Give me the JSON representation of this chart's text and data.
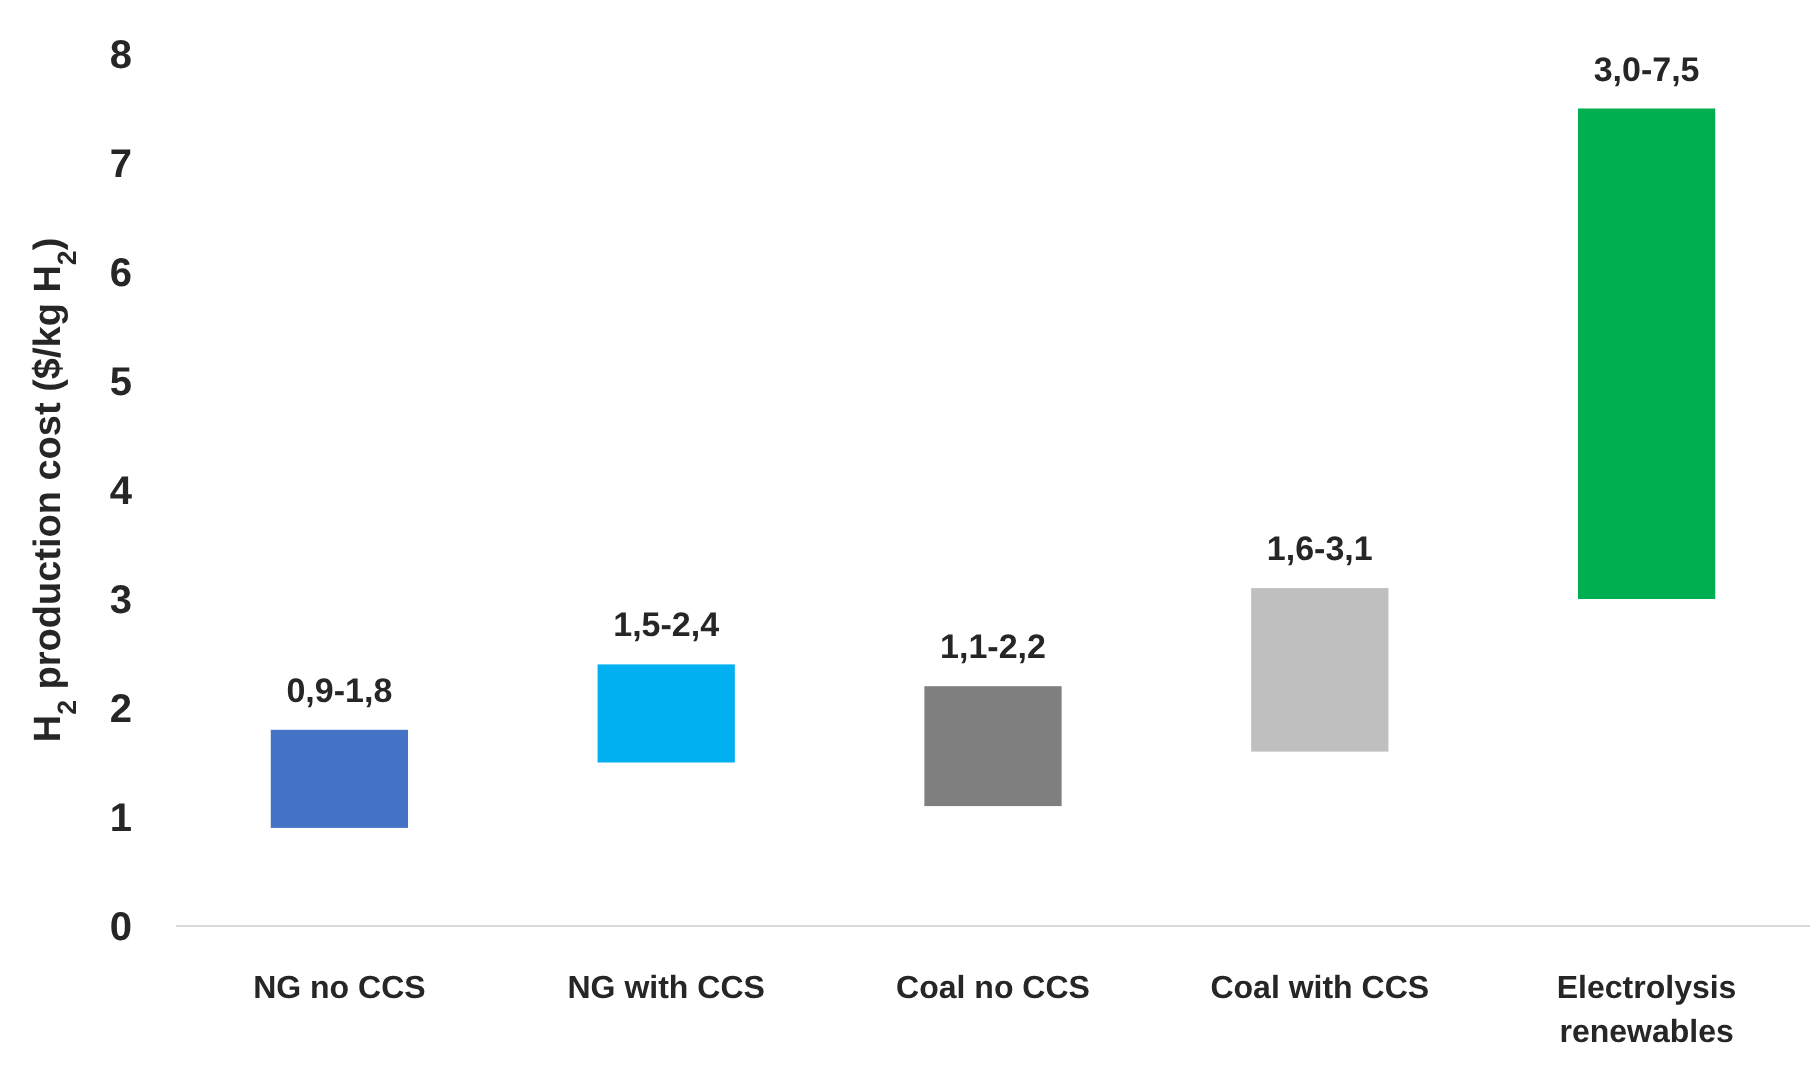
{
  "chart_data": {
    "type": "bar",
    "ylabel": "H$_{2}$ production cost ($/kg H$_{2}$)",
    "categories": [
      "NG no CCS",
      "NG with CCS",
      "Coal no CCS",
      "Coal with CCS",
      "Electrolysis renewables"
    ],
    "base": [
      0.9,
      1.5,
      1.1,
      1.6,
      3.0
    ],
    "values": [
      0.9,
      0.9,
      1.1,
      1.5,
      4.5
    ],
    "colors": [
      "#4472c4",
      "#00b0f0",
      "#7f7f7f",
      "#bfbfbf",
      "#00b050"
    ],
    "value_labels": [
      "0,9-1,8",
      "1,5-2,4",
      "1,1-2,2",
      "1,6-3,1",
      "3,0-7,5"
    ],
    "ylim": [
      0,
      8
    ],
    "yticks": [
      0,
      1,
      2,
      3,
      4,
      5,
      6,
      7,
      8
    ],
    "grid": false
  }
}
